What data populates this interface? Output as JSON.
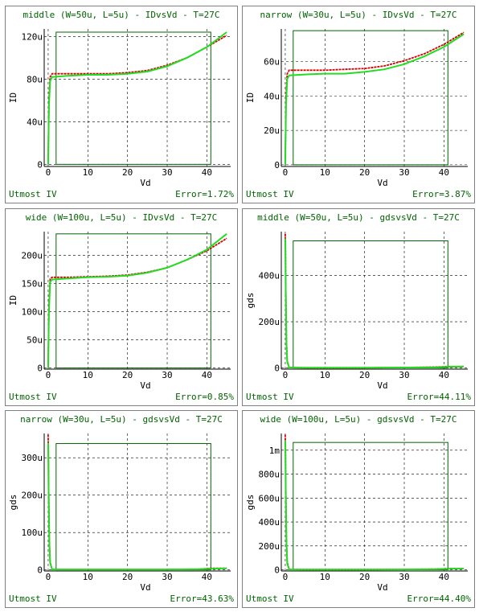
{
  "colors": {
    "measured": "#d40000",
    "simulated": "#22dd22",
    "window": "#006400",
    "text": "#006400"
  },
  "footer_app": "Utmost IV",
  "chart_data": [
    {
      "type": "line",
      "title": "middle (W=50u, L=5u) - IDvsVd - T=27C",
      "xlabel": "Vd",
      "ylabel": "ID",
      "error": "Error=1.72%",
      "xlim": [
        -1,
        46
      ],
      "ylim": [
        -2,
        127
      ],
      "xticks": [
        0,
        10,
        20,
        30,
        40
      ],
      "xtick_labels": [
        "0",
        "10",
        "20",
        "30",
        "40"
      ],
      "yticks": [
        0,
        40,
        80,
        120
      ],
      "ytick_labels": [
        "0",
        "40u",
        "80u",
        "120u"
      ],
      "window": {
        "x0": 2,
        "x1": 41,
        "y0": 0,
        "y1": 124
      },
      "series": [
        {
          "role": "measured",
          "x": [
            0,
            0.2,
            0.5,
            1,
            5,
            10,
            15,
            20,
            25,
            30,
            35,
            40,
            45
          ],
          "y": [
            0,
            60,
            82,
            85,
            85,
            85,
            85,
            86,
            88,
            93,
            100,
            110,
            121
          ]
        },
        {
          "role": "simulated",
          "x": [
            0,
            0.2,
            0.5,
            1,
            5,
            10,
            15,
            20,
            25,
            30,
            35,
            40,
            45
          ],
          "y": [
            0,
            55,
            78,
            82,
            83,
            84,
            84,
            85,
            87,
            92,
            100,
            110,
            124
          ]
        }
      ]
    },
    {
      "type": "line",
      "title": "narrow (W=30u, L=5u) - IDvsVd - T=27C",
      "xlabel": "Vd",
      "ylabel": "ID",
      "error": "Error=3.87%",
      "xlim": [
        -1,
        46
      ],
      "ylim": [
        -1,
        79
      ],
      "xticks": [
        0,
        10,
        20,
        30,
        40
      ],
      "xtick_labels": [
        "0",
        "10",
        "20",
        "30",
        "40"
      ],
      "yticks": [
        0,
        20,
        40,
        60
      ],
      "ytick_labels": [
        "0",
        "20u",
        "40u",
        "60u"
      ],
      "window": {
        "x0": 2,
        "x1": 41,
        "y0": 0,
        "y1": 78
      },
      "series": [
        {
          "role": "measured",
          "x": [
            0,
            0.2,
            0.5,
            1,
            5,
            10,
            15,
            20,
            25,
            30,
            35,
            40,
            45
          ],
          "y": [
            0,
            40,
            53,
            55,
            55,
            55,
            55.5,
            56,
            57.5,
            60.5,
            64.5,
            70,
            77
          ]
        },
        {
          "role": "simulated",
          "x": [
            0,
            0.2,
            0.5,
            1,
            5,
            10,
            15,
            20,
            25,
            30,
            35,
            40,
            45
          ],
          "y": [
            0,
            35,
            50,
            52,
            52.5,
            53,
            53,
            54,
            55.5,
            58.5,
            63,
            68.5,
            76
          ]
        }
      ]
    },
    {
      "type": "line",
      "title": "wide (W=100u, L=5u) - IDvsVd - T=27C",
      "xlabel": "Vd",
      "ylabel": "ID",
      "error": "Error=0.85%",
      "xlim": [
        -1,
        46
      ],
      "ylim": [
        -2,
        242
      ],
      "xticks": [
        0,
        10,
        20,
        30,
        40
      ],
      "xtick_labels": [
        "0",
        "10",
        "20",
        "30",
        "40"
      ],
      "yticks": [
        0,
        50,
        100,
        150,
        200
      ],
      "ytick_labels": [
        "0",
        "50u",
        "100u",
        "150u",
        "200u"
      ],
      "window": {
        "x0": 2,
        "x1": 41,
        "y0": 0,
        "y1": 238
      },
      "series": [
        {
          "role": "measured",
          "x": [
            0,
            0.2,
            0.5,
            1,
            5,
            10,
            15,
            20,
            25,
            30,
            35,
            40,
            45
          ],
          "y": [
            0,
            110,
            158,
            161,
            161,
            162,
            163,
            165,
            170,
            178,
            192,
            208,
            230
          ]
        },
        {
          "role": "simulated",
          "x": [
            0,
            0.2,
            0.5,
            1,
            5,
            10,
            15,
            20,
            25,
            30,
            35,
            40,
            45
          ],
          "y": [
            0,
            100,
            153,
            157,
            159,
            161,
            162,
            164,
            169,
            178,
            192,
            210,
            238
          ]
        }
      ]
    },
    {
      "type": "line",
      "title": "middle (W=50u, L=5u) - gdsvsVd - T=27C",
      "xlabel": "Vd",
      "ylabel": "gds",
      "error": "Error=44.11%",
      "xlim": [
        -1,
        46
      ],
      "ylim": [
        -5,
        590
      ],
      "xticks": [
        0,
        10,
        20,
        30,
        40
      ],
      "xtick_labels": [
        "0",
        "10",
        "20",
        "30",
        "40"
      ],
      "yticks": [
        0,
        200,
        400
      ],
      "ytick_labels": [
        "0",
        "200u",
        "400u"
      ],
      "window": {
        "x0": 2,
        "x1": 41,
        "y0": 0,
        "y1": 550
      },
      "series": [
        {
          "role": "measured",
          "x": [
            0,
            0.05,
            0.1,
            0.2,
            0.3,
            0.5,
            1,
            5,
            10,
            20,
            30,
            38,
            41,
            45
          ],
          "y": [
            580,
            520,
            400,
            250,
            120,
            30,
            2,
            1,
            1,
            1,
            2,
            4,
            6,
            6
          ]
        },
        {
          "role": "simulated",
          "x": [
            0,
            0.05,
            0.1,
            0.2,
            0.3,
            0.5,
            1,
            5,
            10,
            20,
            30,
            38,
            41,
            45
          ],
          "y": [
            560,
            500,
            380,
            230,
            100,
            25,
            2,
            1,
            1,
            1,
            2,
            3,
            5,
            6
          ]
        }
      ]
    },
    {
      "type": "line",
      "title": "narrow (W=30u, L=5u) - gdsvsVd - T=27C",
      "xlabel": "Vd",
      "ylabel": "gds",
      "error": "Error=43.63%",
      "xlim": [
        -1,
        46
      ],
      "ylim": [
        -3,
        365
      ],
      "xticks": [
        0,
        10,
        20,
        30,
        40
      ],
      "xtick_labels": [
        "0",
        "10",
        "20",
        "30",
        "40"
      ],
      "yticks": [
        0,
        100,
        200,
        300
      ],
      "ytick_labels": [
        "0",
        "100u",
        "200u",
        "300u"
      ],
      "window": {
        "x0": 2,
        "x1": 41,
        "y0": 0,
        "y1": 338
      },
      "series": [
        {
          "role": "measured",
          "x": [
            0,
            0.05,
            0.1,
            0.2,
            0.3,
            0.5,
            1,
            5,
            10,
            20,
            30,
            38,
            41,
            45
          ],
          "y": [
            362,
            320,
            250,
            160,
            80,
            20,
            1,
            1,
            1,
            1,
            1,
            2,
            4,
            4
          ]
        },
        {
          "role": "simulated",
          "x": [
            0,
            0.05,
            0.1,
            0.2,
            0.3,
            0.5,
            1,
            5,
            10,
            20,
            30,
            38,
            41,
            45
          ],
          "y": [
            340,
            300,
            230,
            140,
            70,
            18,
            1,
            1,
            1,
            1,
            1,
            2,
            3,
            4
          ]
        }
      ]
    },
    {
      "type": "line",
      "title": "wide (W=100u, L=5u) - gdsvsVd - T=27C",
      "xlabel": "Vd",
      "ylabel": "gds",
      "error": "Error=44.40%",
      "xlim": [
        -1,
        46
      ],
      "ylim": [
        -10,
        1140
      ],
      "xticks": [
        0,
        10,
        20,
        30,
        40
      ],
      "xtick_labels": [
        "0",
        "10",
        "20",
        "30",
        "40"
      ],
      "yticks": [
        0,
        200,
        400,
        600,
        800,
        1000
      ],
      "ytick_labels": [
        "0",
        "200u",
        "400u",
        "600u",
        "800u",
        "1m"
      ],
      "window": {
        "x0": 2,
        "x1": 41,
        "y0": 0,
        "y1": 1065
      },
      "series": [
        {
          "role": "measured",
          "x": [
            0,
            0.05,
            0.1,
            0.2,
            0.3,
            0.5,
            1,
            5,
            10,
            20,
            30,
            38,
            41,
            45
          ],
          "y": [
            1130,
            1000,
            800,
            500,
            250,
            60,
            3,
            2,
            2,
            2,
            3,
            6,
            10,
            10
          ]
        },
        {
          "role": "simulated",
          "x": [
            0,
            0.05,
            0.1,
            0.2,
            0.3,
            0.5,
            1,
            5,
            10,
            20,
            30,
            38,
            41,
            45
          ],
          "y": [
            1080,
            960,
            760,
            460,
            220,
            50,
            3,
            2,
            2,
            2,
            3,
            5,
            8,
            10
          ]
        }
      ]
    }
  ]
}
